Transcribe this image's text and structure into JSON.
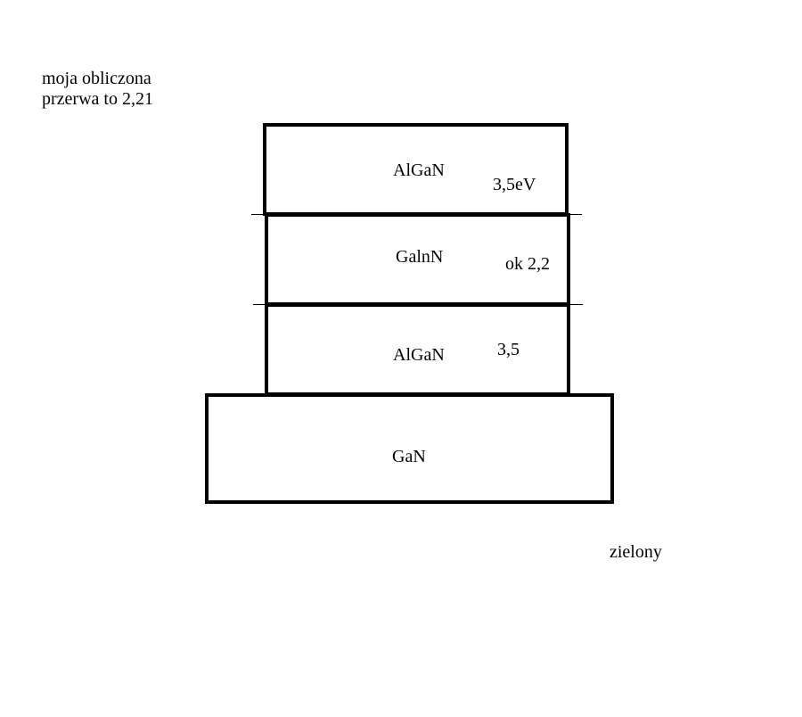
{
  "note": {
    "line1": "moja obliczona",
    "line2": "przerwa to 2,21"
  },
  "layers": {
    "top_algan": {
      "label": "AlGaN",
      "gap": "3,5eV"
    },
    "gainn": {
      "label": "GalnN",
      "gap": "ok 2,2"
    },
    "bottom_algan": {
      "label": "AlGaN",
      "gap": "3,5"
    },
    "gan": {
      "label": "GaN"
    }
  },
  "caption": "zielony",
  "colors": {
    "line": "#000000",
    "background": "#ffffff"
  }
}
